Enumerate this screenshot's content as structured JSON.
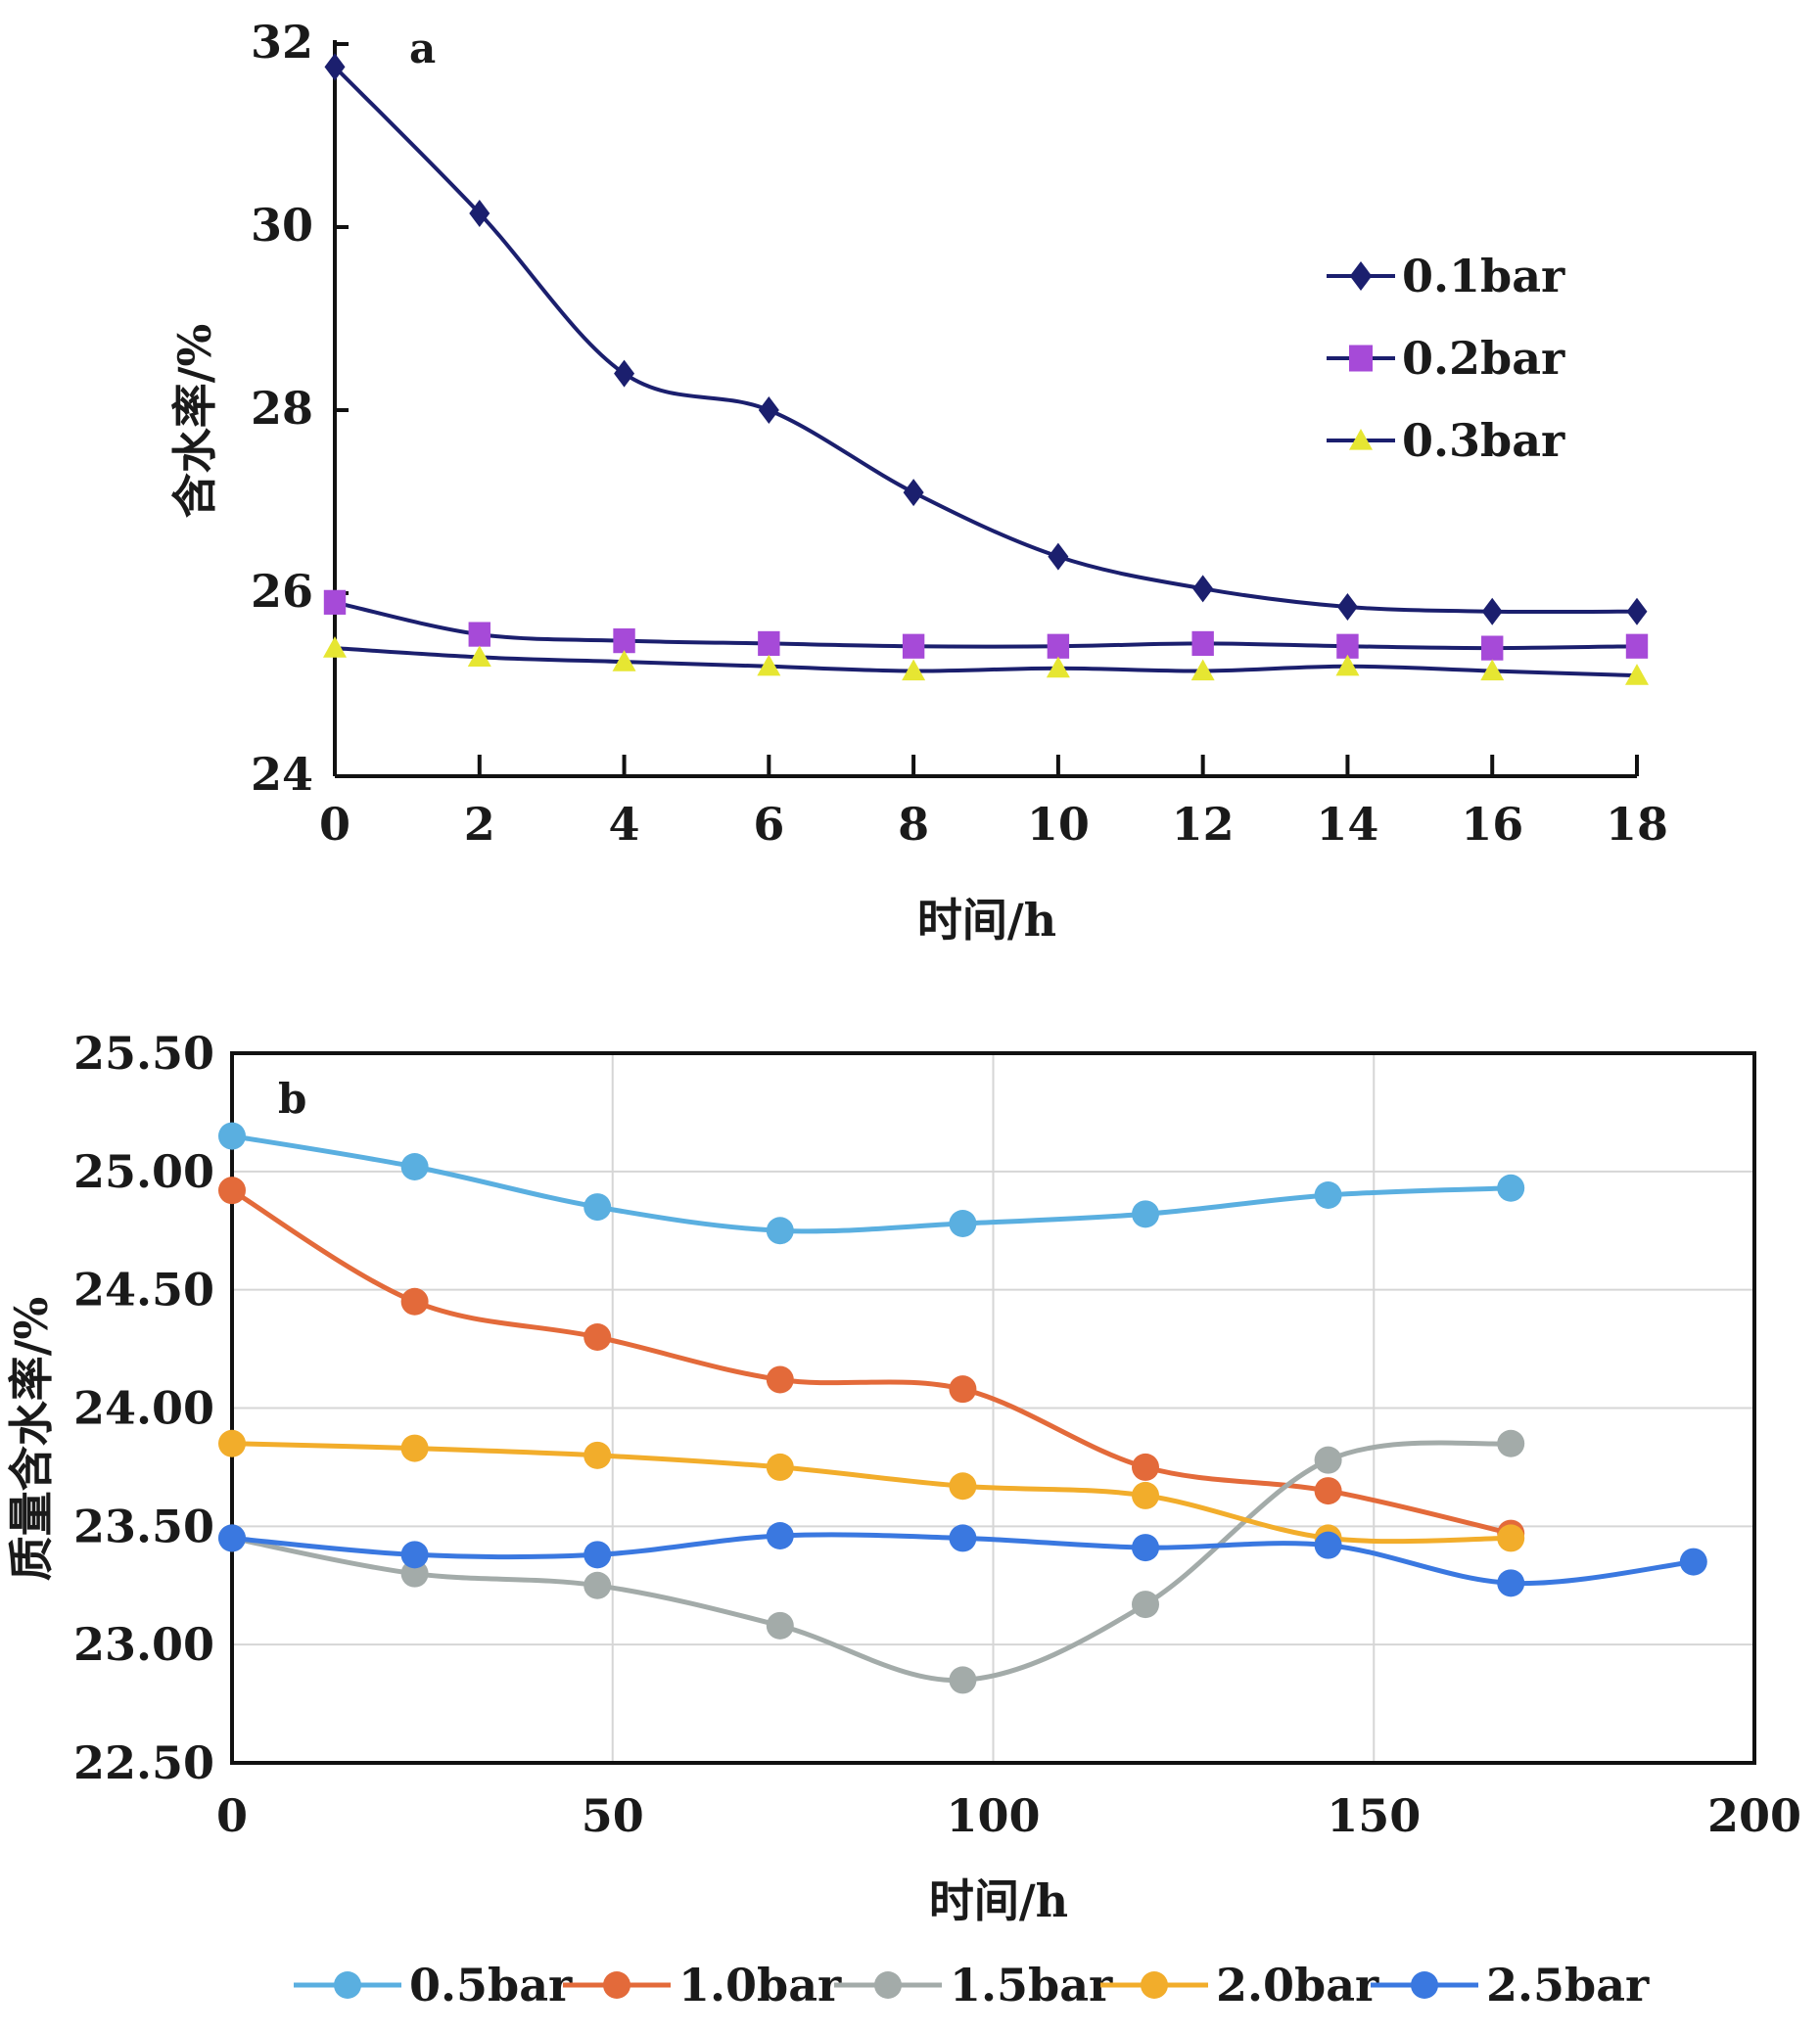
{
  "chart_data": [
    {
      "type": "line",
      "panel_label": "a",
      "xlabel": "时间/h",
      "ylabel": "含水率/%",
      "xlim": [
        0,
        18
      ],
      "ylim": [
        24,
        32
      ],
      "x_ticks": [
        "0",
        "2",
        "4",
        "6",
        "8",
        "10",
        "12",
        "14",
        "16",
        "18"
      ],
      "y_ticks": [
        "24",
        "26",
        "28",
        "30",
        "32"
      ],
      "grid": false,
      "legend_position": "right",
      "x": [
        0,
        2,
        4,
        6,
        8,
        10,
        12,
        14,
        16,
        18
      ],
      "series": [
        {
          "name": "0.1bar",
          "marker": "diamond",
          "color": "#1b1f6e",
          "marker_color": "#1b1f6e",
          "values": [
            31.75,
            30.15,
            28.4,
            28.0,
            27.1,
            26.4,
            26.05,
            25.85,
            25.8,
            25.8
          ]
        },
        {
          "name": "0.2bar",
          "marker": "square",
          "color": "#1b1f6e",
          "marker_color": "#a64ad8",
          "values": [
            25.9,
            25.55,
            25.48,
            25.45,
            25.42,
            25.42,
            25.45,
            25.42,
            25.4,
            25.42
          ]
        },
        {
          "name": "0.3bar",
          "marker": "triangle",
          "color": "#1b1f6e",
          "marker_color": "#e6e632",
          "values": [
            25.4,
            25.3,
            25.25,
            25.2,
            25.15,
            25.18,
            25.15,
            25.2,
            25.15,
            25.1
          ]
        }
      ]
    },
    {
      "type": "line",
      "panel_label": "b",
      "xlabel": "时间/h",
      "ylabel": "质量含水率/%",
      "xlim": [
        0,
        200
      ],
      "ylim": [
        22.5,
        25.5
      ],
      "x_ticks": [
        "0",
        "50",
        "100",
        "150",
        "200"
      ],
      "y_ticks": [
        "22.50",
        "23.00",
        "23.50",
        "24.00",
        "24.50",
        "25.00",
        "25.50"
      ],
      "grid": true,
      "legend_position": "bottom",
      "series": [
        {
          "name": "0.5bar",
          "marker": "circle",
          "color": "#5aafe0",
          "x": [
            0,
            24,
            48,
            72,
            96,
            120,
            144,
            168
          ],
          "values": [
            25.15,
            25.02,
            24.85,
            24.75,
            24.78,
            24.82,
            24.9,
            24.93
          ]
        },
        {
          "name": "1.0bar",
          "marker": "circle",
          "color": "#e36a3a",
          "x": [
            0,
            24,
            48,
            72,
            96,
            120,
            144,
            168
          ],
          "values": [
            24.92,
            24.45,
            24.3,
            24.12,
            24.08,
            23.75,
            23.65,
            23.47
          ]
        },
        {
          "name": "1.5bar",
          "marker": "circle",
          "color": "#a3aba9",
          "x": [
            0,
            24,
            48,
            72,
            96,
            120,
            144,
            168
          ],
          "values": [
            23.45,
            23.3,
            23.25,
            23.08,
            22.85,
            23.17,
            23.78,
            23.85
          ]
        },
        {
          "name": "2.0bar",
          "marker": "circle",
          "color": "#f2ad2b",
          "x": [
            0,
            24,
            48,
            72,
            96,
            120,
            144,
            168
          ],
          "values": [
            23.85,
            23.83,
            23.8,
            23.75,
            23.67,
            23.63,
            23.45,
            23.45
          ]
        },
        {
          "name": "2.5bar",
          "marker": "circle",
          "color": "#3a78e0",
          "x": [
            0,
            24,
            48,
            72,
            96,
            120,
            144,
            168,
            192
          ],
          "values": [
            23.45,
            23.38,
            23.38,
            23.46,
            23.45,
            23.41,
            23.42,
            23.26,
            23.35
          ]
        }
      ]
    }
  ]
}
